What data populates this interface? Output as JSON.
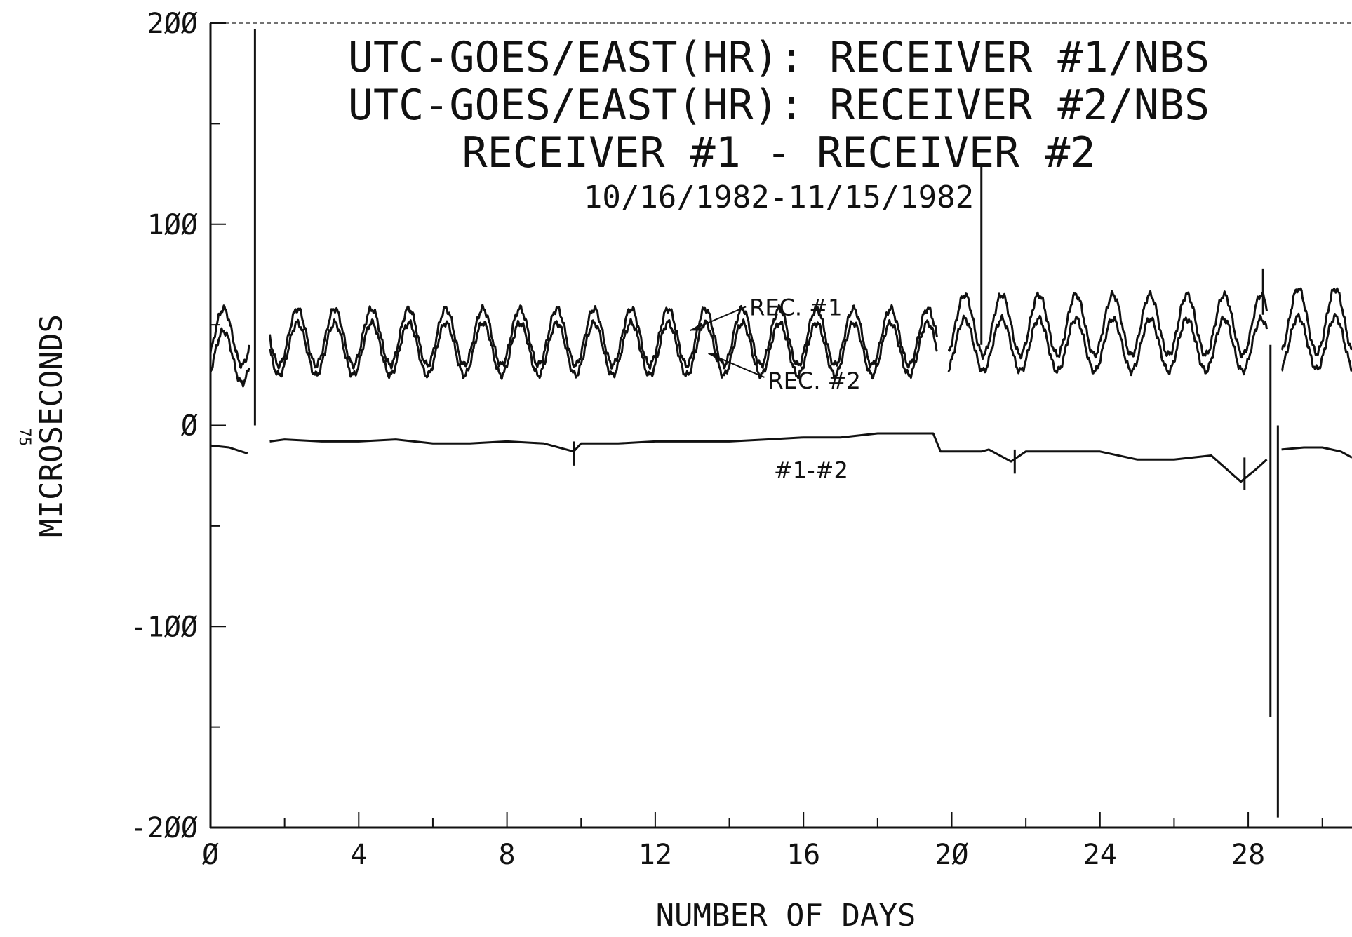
{
  "chart_data": {
    "type": "line",
    "title_lines": [
      "UTC-GOES/EAST(HR): RECEIVER #1/NBS",
      "UTC-GOES/EAST(HR): RECEIVER #2/NBS",
      "RECEIVER #1 - RECEIVER #2"
    ],
    "subtitle": "10/16/1982-11/15/1982",
    "xlabel": "NUMBER OF DAYS",
    "ylabel": "MICROSECONDS",
    "page_number": "75",
    "xlim": [
      0,
      30.8
    ],
    "ylim": [
      -200,
      200
    ],
    "x_ticks": [
      0,
      4,
      8,
      12,
      16,
      20,
      24,
      28
    ],
    "x_tick_labels": [
      "Ø",
      "4",
      "8",
      "12",
      "16",
      "2Ø",
      "24",
      "28"
    ],
    "y_ticks": [
      200,
      100,
      0,
      -100,
      -200
    ],
    "y_tick_labels": [
      "2ØØ",
      "1ØØ",
      "Ø",
      "-1ØØ",
      "-2ØØ"
    ],
    "grid": false,
    "legend": "none",
    "annotations": [
      {
        "text": "REC. #1",
        "x": 13.5,
        "y": 59
      },
      {
        "text": "REC. #2",
        "x": 14,
        "y": 26
      },
      {
        "text": "#1-#2",
        "x": 15.2,
        "y": -22
      }
    ],
    "series": [
      {
        "label": "REC. #1",
        "segments": [
          {
            "x_start": 0.0,
            "x_end": 1.05,
            "mean": 44,
            "amplitude": 14,
            "period": 1.0
          },
          {
            "x_start": 1.6,
            "x_end": 19.6,
            "mean": 44,
            "amplitude": 14,
            "period": 1.0
          },
          {
            "x_start": 19.9,
            "x_end": 28.5,
            "mean": 50,
            "amplitude": 15,
            "period": 1.0
          },
          {
            "x_start": 28.9,
            "x_end": 30.8,
            "mean": 52,
            "amplitude": 16,
            "period": 1.0
          }
        ],
        "spikes": [
          {
            "x": 1.2,
            "y_from": 0,
            "y_to": 197
          },
          {
            "x": 20.8,
            "y_from": 40,
            "y_to": 130
          },
          {
            "x": 28.4,
            "y_from": 55,
            "y_to": 78
          }
        ]
      },
      {
        "label": "REC. #2",
        "segments": [
          {
            "x_start": 0.0,
            "x_end": 1.05,
            "mean": 34,
            "amplitude": 13,
            "period": 1.0
          },
          {
            "x_start": 1.6,
            "x_end": 19.6,
            "mean": 38,
            "amplitude": 13,
            "period": 1.0
          },
          {
            "x_start": 19.9,
            "x_end": 28.5,
            "mean": 40,
            "amplitude": 13,
            "period": 1.0
          },
          {
            "x_start": 28.9,
            "x_end": 30.8,
            "mean": 41,
            "amplitude": 13,
            "period": 1.0
          }
        ],
        "spikes": [
          {
            "x": 28.6,
            "y_from": 40,
            "y_to": -145
          },
          {
            "x": 28.8,
            "y_from": 0,
            "y_to": -195
          }
        ]
      },
      {
        "label": "#1-#2",
        "points": [
          [
            0.0,
            -10
          ],
          [
            0.5,
            -11
          ],
          [
            1.0,
            -14
          ],
          [
            1.6,
            -8
          ],
          [
            2.0,
            -7
          ],
          [
            3.0,
            -8
          ],
          [
            4.0,
            -8
          ],
          [
            5.0,
            -7
          ],
          [
            6.0,
            -9
          ],
          [
            7.0,
            -9
          ],
          [
            8.0,
            -8
          ],
          [
            9.0,
            -9
          ],
          [
            9.8,
            -13
          ],
          [
            10.0,
            -9
          ],
          [
            11.0,
            -9
          ],
          [
            12.0,
            -8
          ],
          [
            13.0,
            -8
          ],
          [
            14.0,
            -8
          ],
          [
            15.0,
            -7
          ],
          [
            16.0,
            -6
          ],
          [
            17.0,
            -6
          ],
          [
            18.0,
            -4
          ],
          [
            19.0,
            -4
          ],
          [
            19.5,
            -4
          ],
          [
            19.7,
            -13
          ],
          [
            20.0,
            -13
          ],
          [
            20.8,
            -13
          ],
          [
            21.0,
            -12
          ],
          [
            21.6,
            -18
          ],
          [
            22.0,
            -13
          ],
          [
            23.0,
            -13
          ],
          [
            24.0,
            -13
          ],
          [
            25.0,
            -17
          ],
          [
            26.0,
            -17
          ],
          [
            27.0,
            -15
          ],
          [
            27.8,
            -28
          ],
          [
            28.2,
            -22
          ],
          [
            28.5,
            -17
          ],
          [
            28.9,
            -12
          ],
          [
            29.5,
            -11
          ],
          [
            30.0,
            -11
          ],
          [
            30.5,
            -13
          ],
          [
            30.8,
            -16
          ]
        ],
        "breaks_after_x": [
          1.0,
          28.5
        ],
        "spikes": [
          {
            "x": 9.8,
            "y_from": -8,
            "y_to": -20
          },
          {
            "x": 21.7,
            "y_from": -12,
            "y_to": -24
          },
          {
            "x": 27.9,
            "y_from": -16,
            "y_to": -32
          }
        ]
      }
    ]
  }
}
